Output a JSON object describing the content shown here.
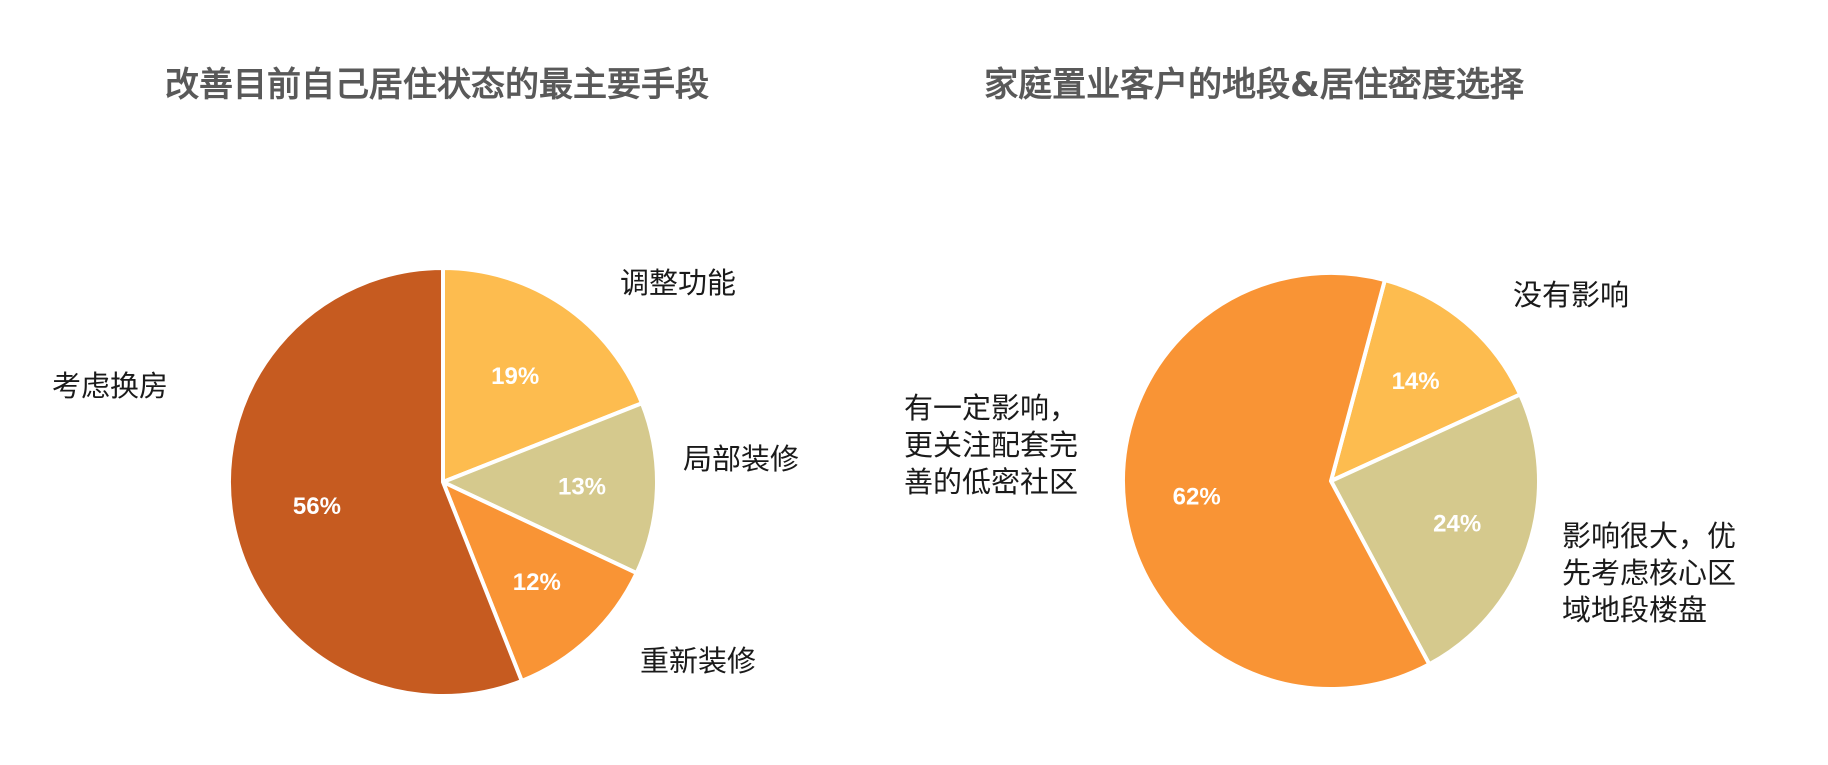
{
  "chart_data": [
    {
      "type": "pie",
      "title": "改善目前自己居住状态的最主要手段",
      "start_angle_deg": 0,
      "slices": [
        {
          "label": "调整功能",
          "value": 19,
          "display": "19%",
          "color": "#FDBC4F"
        },
        {
          "label": "局部装修",
          "value": 13,
          "display": "13%",
          "color": "#D5C98D"
        },
        {
          "label": "重新装修",
          "value": 12,
          "display": "12%",
          "color": "#F99435"
        },
        {
          "label": "考虑换房",
          "value": 56,
          "display": "56%",
          "color": "#C65B20"
        }
      ]
    },
    {
      "type": "pie",
      "title": "家庭置业客户的地段&居住密度选择",
      "start_angle_deg": 15,
      "slices": [
        {
          "label": "没有影响",
          "value": 14,
          "display": "14%",
          "color": "#FDBC4F"
        },
        {
          "label": "影响很大，优先考虑核心区域地段楼盘",
          "lines": [
            "影响很大，优",
            "先考虑核心区",
            "域地段楼盘"
          ],
          "value": 24,
          "display": "24%",
          "color": "#D5C98D"
        },
        {
          "label": "有一定影响，更关注配套完善的低密社区",
          "lines": [
            "有一定影响，",
            "更关注配套完",
            "善的低密社区"
          ],
          "value": 62,
          "display": "62%",
          "color": "#F99435"
        }
      ]
    }
  ]
}
